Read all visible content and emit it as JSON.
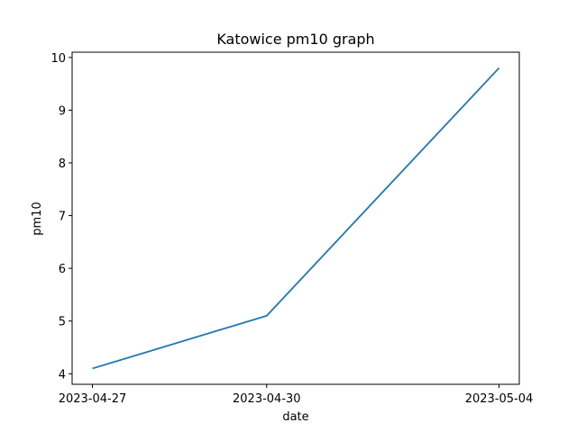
{
  "chart_data": {
    "type": "line",
    "title": "Katowice pm10 graph",
    "xlabel": "date",
    "ylabel": "pm10",
    "x": [
      "2023-04-27",
      "2023-04-30",
      "2023-05-04"
    ],
    "xticks": [
      "2023-04-27",
      "2023-04-30",
      "2023-05-04"
    ],
    "yticks": [
      4,
      5,
      6,
      7,
      8,
      9,
      10
    ],
    "ylim": [
      3.8,
      10.1
    ],
    "grid": false,
    "series": [
      {
        "values": [
          4.1,
          5.1,
          9.8
        ],
        "color": "#1f77b4"
      }
    ]
  }
}
